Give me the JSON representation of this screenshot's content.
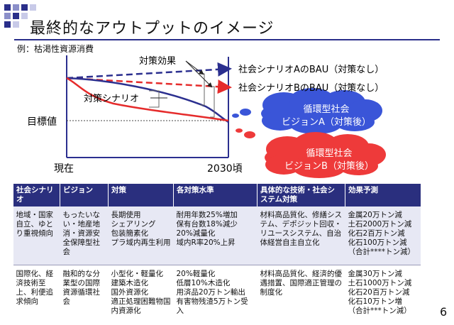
{
  "slide": {
    "title": "最終的なアウトプットのイメージ",
    "subtitle": "例：枯渇性資源消費",
    "page_number": "6"
  },
  "diagram": {
    "label_measure_effect": "対策効果",
    "label_scenario": "対策シナリオ",
    "label_target": "目標値",
    "label_now": "現在",
    "label_2030": "2030頃",
    "label_bau_a": "社会シナリオAのBAU（対策なし）",
    "label_bau_b": "社会シナリオBのBAU（対策なし）",
    "cloud_a": [
      "循環型社会",
      "ビジョンA（対策後）"
    ],
    "cloud_b": [
      "循環型社会",
      "ビジョンB（対策後）"
    ],
    "colors": {
      "navy": "#2b2f8f",
      "red": "#e52b2b",
      "cloud_blue": "#3a55d8",
      "cloud_red": "#ee3a3a"
    }
  },
  "table": {
    "headers": [
      "社会シナリオ",
      "ビジョン",
      "対策",
      "各対策水準",
      "具体的な技術・社会システム対策",
      "効果予測"
    ],
    "rows": [
      [
        "地域・国家自立、ゆとり重視傾向",
        "もったいない・地産地消・資源安全保障型社会",
        "長期使用\nシェアリング\n包装簡素化\nプラ域内再生利用",
        "耐用年数25%増加\n保有台数18%減少\n20%減量化\n域内R率20%上昇",
        "材料高品質化、修繕システム、デポジット回収・リユースシステム、自治体経営自主自立化",
        "金属20万トン減\n土石2000万トン減\n化石2百万トン減\n化石100万トン減\n（合計****トン減）"
      ],
      [
        "国際化、経済技術至上、利便追求傾向",
        "融和的な分業型の国際資源循環社会",
        "小型化・軽量化\n建築木造化\n国外資源化\n適正処理困難物国内資源化",
        "20%軽量化\n低層10%木造化\n用済品20万トン輸出\n有害物残渣5万トン受入",
        "材料高品質化、経済的優遇措置、国際適正管理の制度化",
        "金属30万トン減\n土石1000万トン減\n化石20百万トン減\n化石10万トン増\n（合計***トン減）"
      ]
    ]
  }
}
